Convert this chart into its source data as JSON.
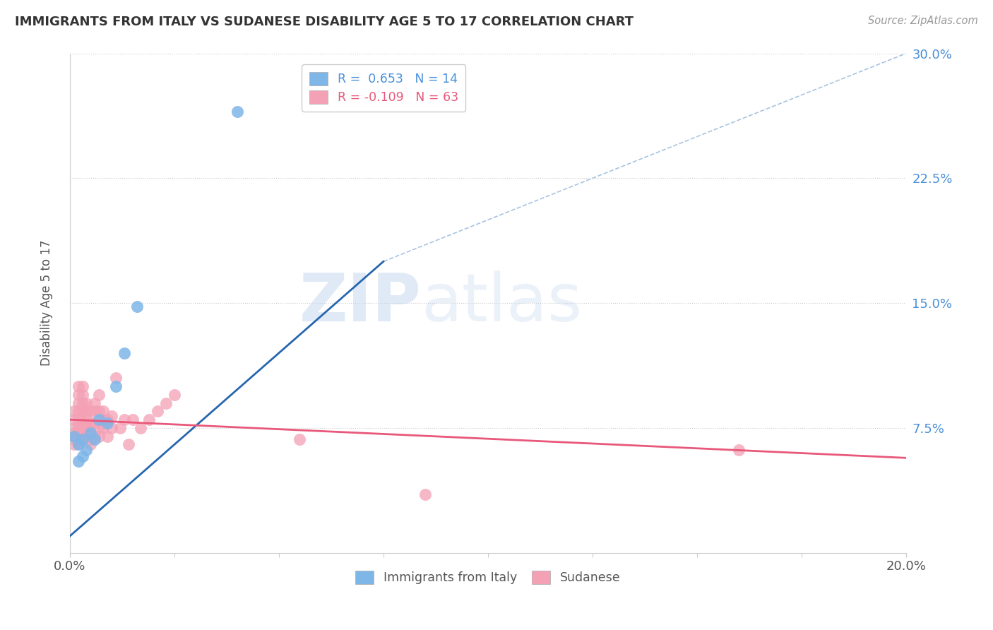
{
  "title": "IMMIGRANTS FROM ITALY VS SUDANESE DISABILITY AGE 5 TO 17 CORRELATION CHART",
  "source": "Source: ZipAtlas.com",
  "ylabel": "Disability Age 5 to 17",
  "xlim": [
    0.0,
    0.2
  ],
  "ylim": [
    0.0,
    0.3
  ],
  "legend_italy_R": "0.653",
  "legend_italy_N": "14",
  "legend_sudan_R": "-0.109",
  "legend_sudan_N": "63",
  "italy_color": "#7EB6E8",
  "sudan_color": "#F4A0B5",
  "italy_line_color": "#2566AE",
  "sudan_line_color": "#E8587A",
  "diagonal_color": "#A8C4E0",
  "watermark_zip": "ZIP",
  "watermark_atlas": "atlas",
  "italy_points_x": [
    0.001,
    0.002,
    0.002,
    0.003,
    0.003,
    0.004,
    0.005,
    0.006,
    0.007,
    0.009,
    0.011,
    0.013,
    0.016,
    0.04
  ],
  "italy_points_y": [
    0.07,
    0.065,
    0.055,
    0.068,
    0.058,
    0.062,
    0.072,
    0.068,
    0.08,
    0.078,
    0.1,
    0.12,
    0.148,
    0.265
  ],
  "sudan_points_x": [
    0.001,
    0.001,
    0.001,
    0.001,
    0.001,
    0.001,
    0.001,
    0.002,
    0.002,
    0.002,
    0.002,
    0.002,
    0.002,
    0.002,
    0.002,
    0.002,
    0.002,
    0.003,
    0.003,
    0.003,
    0.003,
    0.003,
    0.003,
    0.003,
    0.004,
    0.004,
    0.004,
    0.004,
    0.004,
    0.004,
    0.005,
    0.005,
    0.005,
    0.005,
    0.005,
    0.006,
    0.006,
    0.006,
    0.006,
    0.007,
    0.007,
    0.007,
    0.007,
    0.008,
    0.008,
    0.008,
    0.009,
    0.009,
    0.01,
    0.01,
    0.011,
    0.012,
    0.013,
    0.014,
    0.015,
    0.017,
    0.019,
    0.021,
    0.023,
    0.025,
    0.055,
    0.085,
    0.16
  ],
  "sudan_points_y": [
    0.072,
    0.075,
    0.07,
    0.068,
    0.08,
    0.085,
    0.065,
    0.07,
    0.072,
    0.068,
    0.075,
    0.08,
    0.085,
    0.09,
    0.095,
    0.1,
    0.065,
    0.07,
    0.072,
    0.078,
    0.085,
    0.09,
    0.095,
    0.1,
    0.07,
    0.075,
    0.08,
    0.085,
    0.09,
    0.078,
    0.068,
    0.072,
    0.078,
    0.085,
    0.065,
    0.07,
    0.078,
    0.085,
    0.09,
    0.07,
    0.075,
    0.085,
    0.095,
    0.075,
    0.08,
    0.085,
    0.07,
    0.08,
    0.075,
    0.082,
    0.105,
    0.075,
    0.08,
    0.065,
    0.08,
    0.075,
    0.08,
    0.085,
    0.09,
    0.095,
    0.068,
    0.035,
    0.062
  ],
  "italy_line_x": [
    0.0,
    0.075
  ],
  "italy_line_y": [
    0.01,
    0.175
  ],
  "sudan_line_x": [
    0.0,
    0.2
  ],
  "sudan_line_y": [
    0.08,
    0.057
  ],
  "diag_line_x": [
    0.075,
    0.2
  ],
  "diag_line_y": [
    0.175,
    0.3
  ],
  "ytick_positions": [
    0.075,
    0.15,
    0.225,
    0.3
  ],
  "ytick_labels": [
    "7.5%",
    "15.0%",
    "22.5%",
    "30.0%"
  ]
}
